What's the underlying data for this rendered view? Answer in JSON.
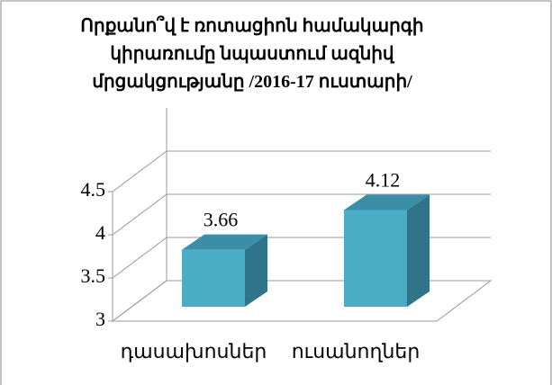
{
  "chart_data": {
    "type": "bar3d",
    "title": "Որքանո՞վ է ռոտացիոն համակարգի կիրառումը նպաստում ազնիվ մրցակցությանը /2016-17 ուստարի/",
    "categories": [
      "դասախոսներ",
      "ուսանողներ"
    ],
    "values": [
      3.66,
      4.12
    ],
    "color": "#4bacc6",
    "ylim": [
      3,
      5
    ],
    "yticks": [
      3,
      3.5,
      4,
      4.5
    ],
    "grid": true
  }
}
